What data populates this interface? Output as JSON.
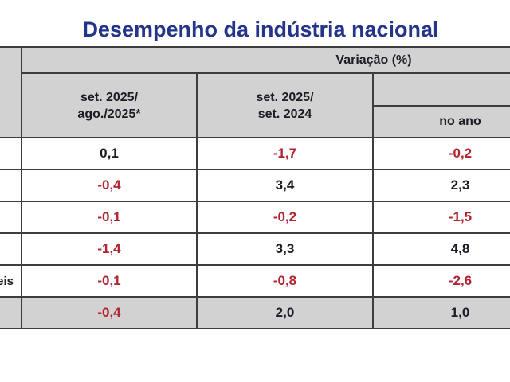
{
  "title": "Desempenho da indústria nacional",
  "colors": {
    "title_blue": "#243489",
    "text_dark": "#1c1c26",
    "negative_red": "#b22330",
    "header_gray": "#d2d2d2",
    "border_gray": "#3d3d3d",
    "row_white": "#ffffff"
  },
  "chart_data": {
    "type": "table",
    "title": "Desempenho da indústria nacional",
    "group_header": "Variação (%)",
    "column_headers": [
      {
        "line1": "set. 2025/",
        "line2": "ago./2025*"
      },
      {
        "line1": "set. 2025/",
        "line2": "set. 2024"
      },
      {
        "line1": "no ano",
        "line2": ""
      }
    ],
    "rows": [
      {
        "label": "",
        "values": [
          "0,1",
          "-1,7",
          "-0,2"
        ],
        "numeric": [
          0.1,
          -1.7,
          -0.2
        ],
        "is_total": false
      },
      {
        "label": "",
        "values": [
          "-0,4",
          "3,4",
          "2,3"
        ],
        "numeric": [
          -0.4,
          3.4,
          2.3
        ],
        "is_total": false
      },
      {
        "label": "",
        "values": [
          "-0,1",
          "-0,2",
          "-1,5"
        ],
        "numeric": [
          -0.1,
          -0.2,
          -1.5
        ],
        "is_total": false
      },
      {
        "label": "",
        "values": [
          "-1,4",
          "3,3",
          "4,8"
        ],
        "numeric": [
          -1.4,
          3.3,
          4.8
        ],
        "is_total": false
      },
      {
        "label": "eis",
        "values": [
          "-0,1",
          "-0,8",
          "-2,6"
        ],
        "numeric": [
          -0.1,
          -0.8,
          -2.6
        ],
        "is_total": false
      },
      {
        "label": "",
        "values": [
          "-0,4",
          "2,0",
          "1,0"
        ],
        "numeric": [
          -0.4,
          2.0,
          1.0
        ],
        "is_total": true
      }
    ]
  }
}
